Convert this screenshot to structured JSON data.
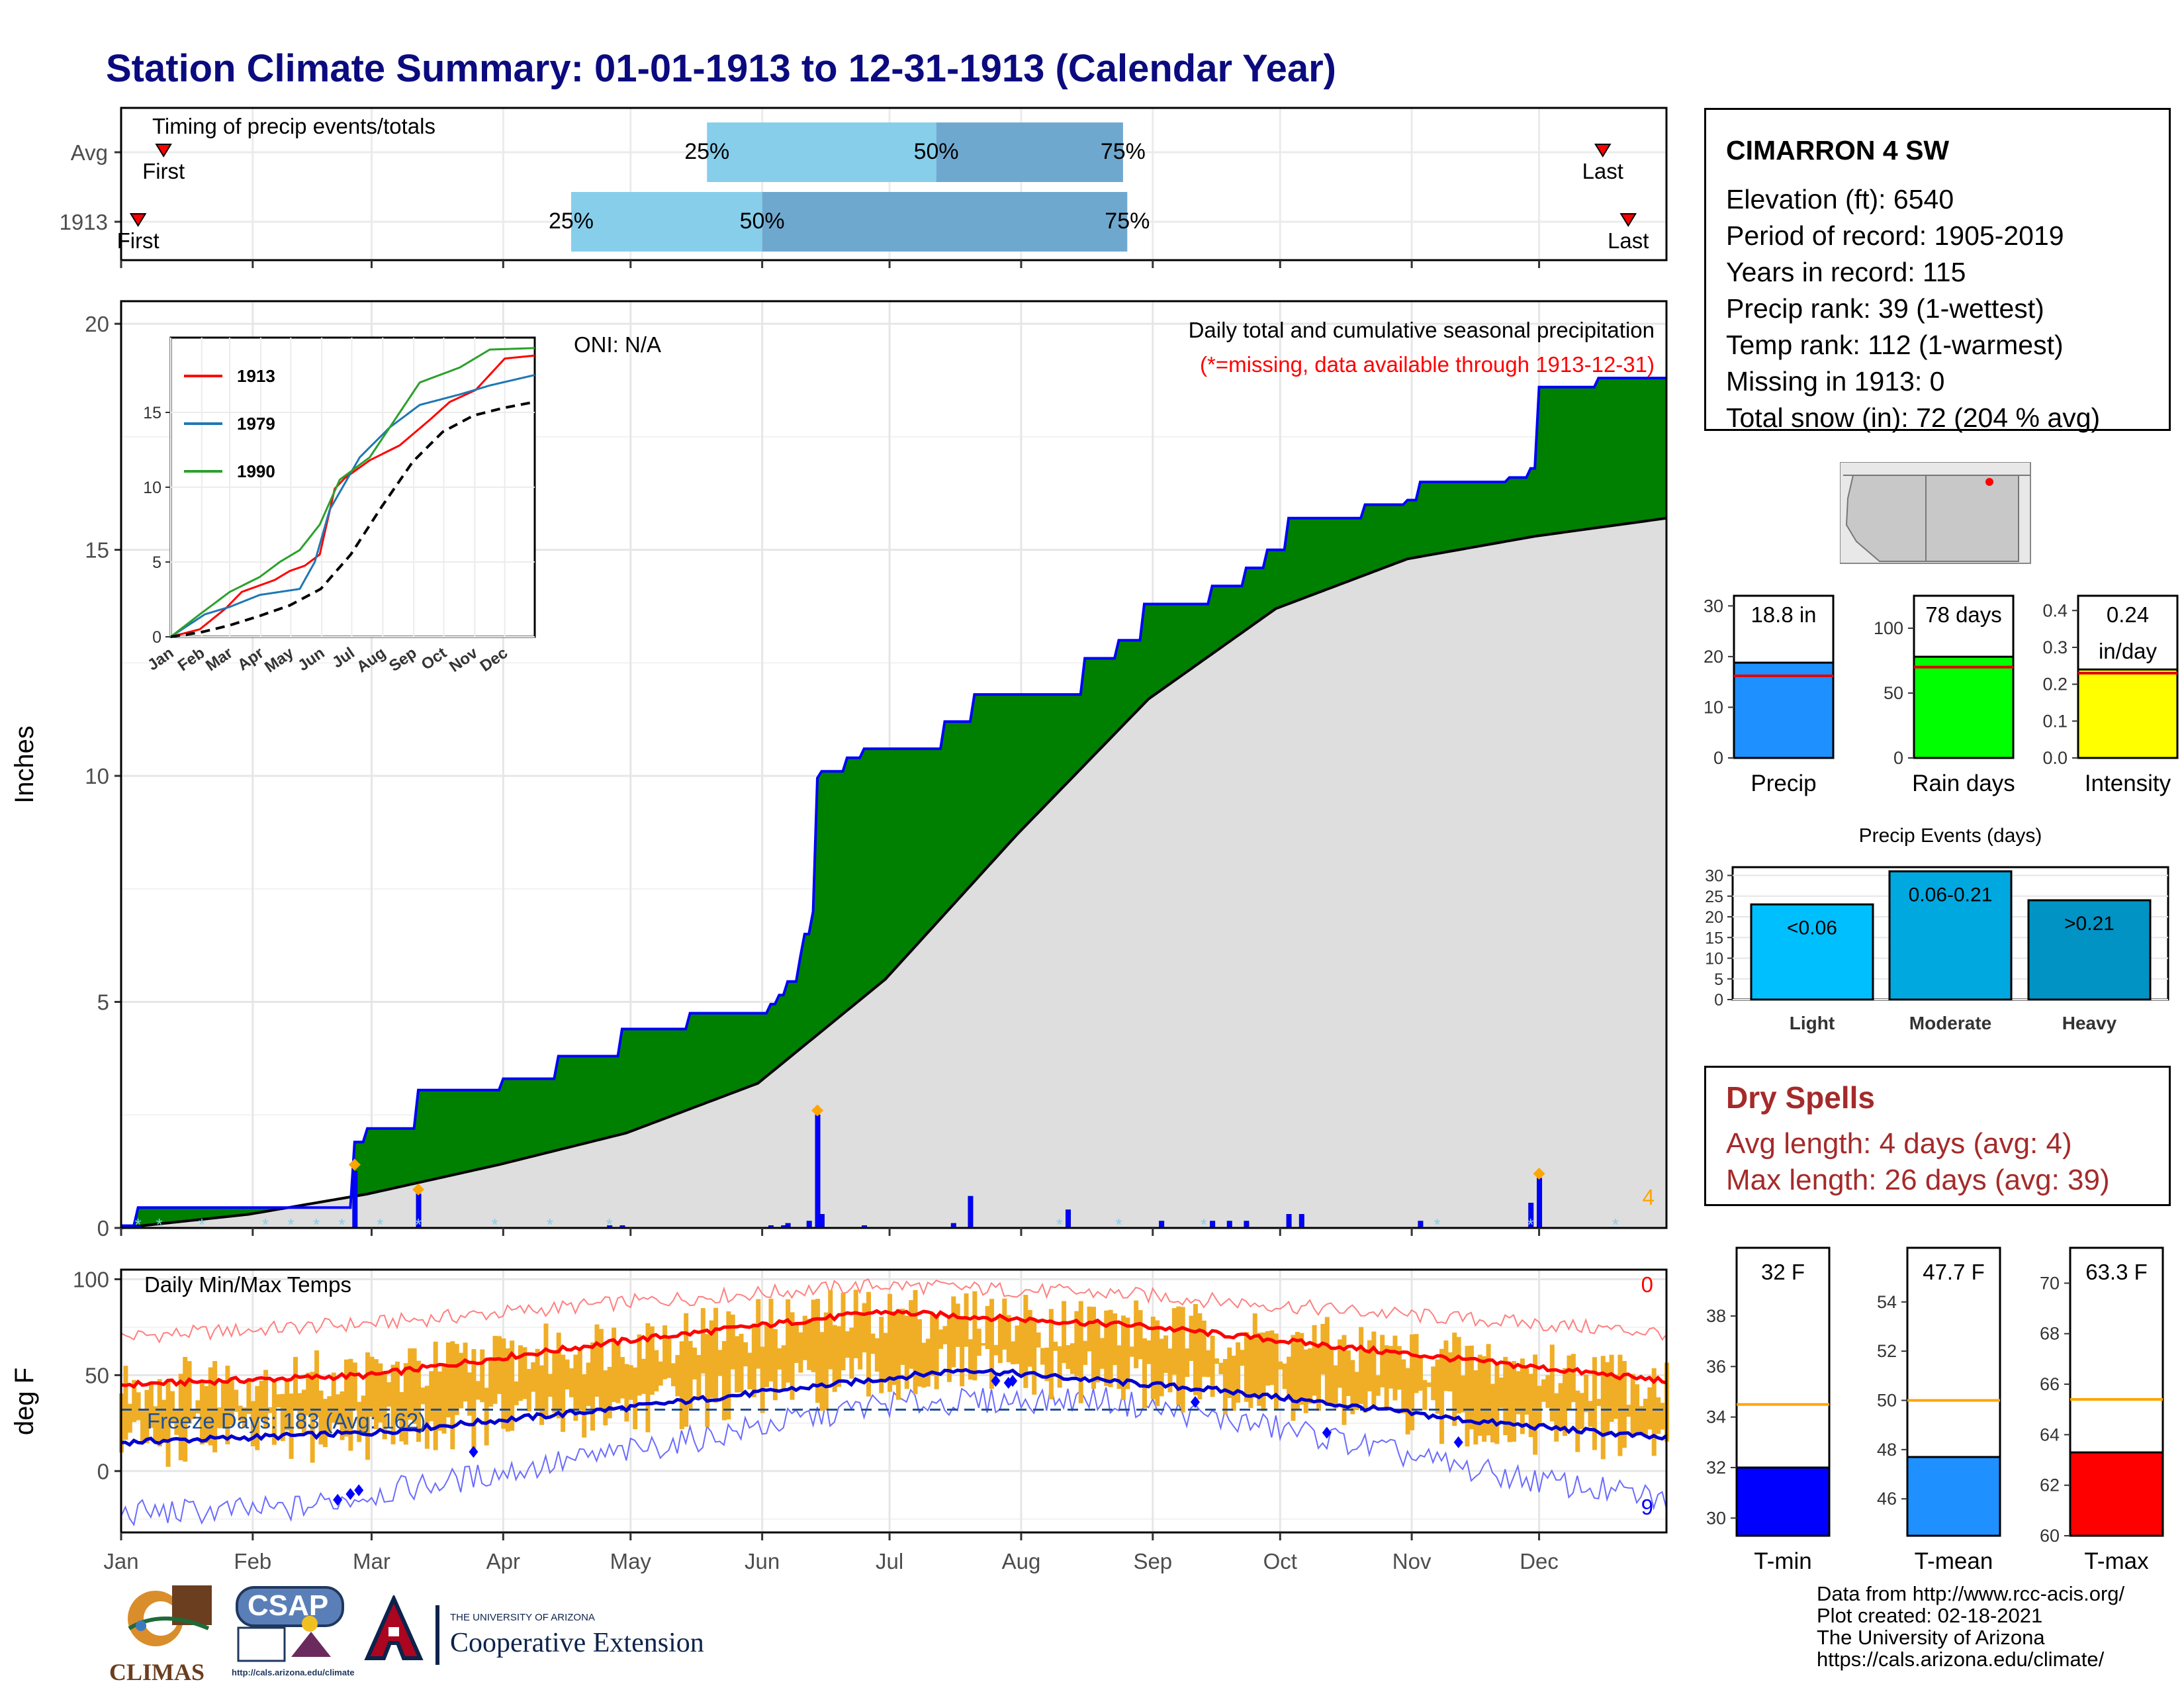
{
  "title": "Station Climate Summary: 01-01-1913 to 12-31-1913 (Calendar Year)",
  "station": {
    "name": "CIMARRON 4 SW",
    "lines": [
      "Elevation (ft): 6540",
      "Period of record: 1905-2019",
      "Years in record: 115",
      "Precip rank: 39 (1-wettest)",
      "Temp rank: 112 (1-warmest)",
      "Missing in 1913: 0",
      "Total snow (in): 72 (204 % avg)"
    ]
  },
  "dry_spells": {
    "title": "Dry Spells",
    "avg_line": "Avg length: 4 days (avg: 4)",
    "max_line": "Max length: 26 days (avg: 39)"
  },
  "credits": [
    "Data from http://www.rcc-acis.org/",
    "Plot created: 02-18-2021",
    "The University of Arizona",
    "https://cals.arizona.edu/climate/"
  ],
  "logos": {
    "climas": "CLIMAS",
    "csap": "CSAP",
    "csap_url": "http://cals.arizona.edu/climate",
    "ua_small": "THE UNIVERSITY OF ARIZONA",
    "ua_ext": "Cooperative Extension"
  },
  "months": [
    "Jan",
    "Feb",
    "Mar",
    "Apr",
    "May",
    "Jun",
    "Jul",
    "Aug",
    "Sep",
    "Oct",
    "Nov",
    "Dec"
  ],
  "colors": {
    "title": "#0b0b7f",
    "green": "#008000",
    "blue_line": "#0000ff",
    "avg_fill": "#dedede",
    "bar_light": "#87ceeb",
    "bar_dark": "#6fa8cf",
    "orange": "#efae26",
    "red": "#ff0000",
    "dry": "#a52a2a"
  },
  "chart_data": [
    {
      "id": "timing",
      "type": "bar",
      "title": "Timing of precip events/totals",
      "rows": [
        {
          "label": "Avg",
          "first": "Jan 11",
          "p25": "May 19",
          "p50": "Jul 12",
          "p75": "Aug 25",
          "last": "Dec 16"
        },
        {
          "label": "1913",
          "first": "Jan 5",
          "p25": "Apr 17",
          "p50": "Jun 1",
          "p75": "Aug 26",
          "last": "Dec 22"
        }
      ],
      "texts": {
        "p25": "25%",
        "p50": "50%",
        "p75": "75%",
        "first": "First",
        "last": "Last"
      }
    },
    {
      "id": "cumulative",
      "type": "area",
      "title": "Daily total and cumulative seasonal precipitation",
      "subtitle": "(*=missing, data available through 1913-12-31)",
      "oni": "ONI: N/A",
      "ylabel": "Inches",
      "ylim": [
        0,
        20.5
      ],
      "yticks": [
        0,
        5,
        10,
        15,
        20
      ],
      "corner_count": "4",
      "cum_1913_steps": [
        [
          1,
          0.05
        ],
        [
          5,
          0.45
        ],
        [
          55,
          0.45
        ],
        [
          56,
          1.9
        ],
        [
          59,
          2.2
        ],
        [
          66,
          2.2
        ],
        [
          71,
          3.05
        ],
        [
          90,
          3.05
        ],
        [
          91,
          3.3
        ],
        [
          103,
          3.3
        ],
        [
          104,
          3.8
        ],
        [
          118,
          3.8
        ],
        [
          119,
          4.4
        ],
        [
          134,
          4.4
        ],
        [
          135,
          4.75
        ],
        [
          153,
          4.75
        ],
        [
          154,
          4.95
        ],
        [
          156,
          5.15
        ],
        [
          158,
          5.45
        ],
        [
          161,
          6.0
        ],
        [
          162,
          6.5
        ],
        [
          164,
          7.0
        ],
        [
          165,
          9.95
        ],
        [
          166,
          10.1
        ],
        [
          172,
          10.4
        ],
        [
          176,
          10.6
        ],
        [
          193,
          10.6
        ],
        [
          195,
          11.2
        ],
        [
          201,
          11.2
        ],
        [
          202,
          11.8
        ],
        [
          211,
          11.8
        ],
        [
          213,
          11.8
        ],
        [
          228,
          12.6
        ],
        [
          236,
          13.0
        ],
        [
          242,
          13.8
        ],
        [
          258,
          14.2
        ],
        [
          266,
          14.6
        ],
        [
          271,
          15.0
        ],
        [
          276,
          15.7
        ],
        [
          286,
          15.7
        ],
        [
          294,
          16.0
        ],
        [
          304,
          16.1
        ],
        [
          307,
          16.5
        ],
        [
          310,
          16.5
        ],
        [
          328,
          16.6
        ],
        [
          333,
          16.8
        ],
        [
          335,
          18.6
        ],
        [
          349,
          18.8
        ],
        [
          365,
          18.8
        ]
      ],
      "avg_cum": [
        [
          1,
          0.0
        ],
        [
          31,
          0.3
        ],
        [
          59,
          0.75
        ],
        [
          90,
          1.4
        ],
        [
          120,
          2.1
        ],
        [
          151,
          3.2
        ],
        [
          181,
          5.5
        ],
        [
          212,
          8.7
        ],
        [
          243,
          11.7
        ],
        [
          273,
          13.7
        ],
        [
          304,
          14.8
        ],
        [
          334,
          15.3
        ],
        [
          365,
          15.7
        ]
      ],
      "daily_bars": [
        [
          3,
          0.05
        ],
        [
          5,
          0.05
        ],
        [
          56,
          1.25
        ],
        [
          71,
          0.75
        ],
        [
          116,
          0.05
        ],
        [
          119,
          0.05
        ],
        [
          154,
          0.05
        ],
        [
          157,
          0.05
        ],
        [
          158,
          0.1
        ],
        [
          163,
          0.15
        ],
        [
          165,
          2.5
        ],
        [
          166,
          0.3
        ],
        [
          176,
          0.05
        ],
        [
          197,
          0.1
        ],
        [
          201,
          0.7
        ],
        [
          224,
          0.4
        ],
        [
          246,
          0.15
        ],
        [
          258,
          0.15
        ],
        [
          262,
          0.15
        ],
        [
          266,
          0.15
        ],
        [
          276,
          0.3
        ],
        [
          279,
          0.3
        ],
        [
          307,
          0.15
        ],
        [
          333,
          0.55
        ],
        [
          335,
          1.1
        ]
      ],
      "markers": [
        [
          56,
          1.4
        ],
        [
          71,
          0.85
        ],
        [
          165,
          2.6
        ],
        [
          335,
          1.2
        ]
      ]
    },
    {
      "id": "inset_cumulative",
      "type": "line",
      "xlabels": [
        "Jan",
        "Feb",
        "Mar",
        "Apr",
        "May",
        "Jun",
        "Jul",
        "Aug",
        "Sep",
        "Oct",
        "Nov",
        "Dec"
      ],
      "ylim": [
        0,
        20
      ],
      "yticks": [
        0,
        5,
        10,
        15
      ],
      "series": [
        {
          "name": "1913",
          "color": "#ff0000",
          "points": [
            [
              1,
              0
            ],
            [
              30,
              0.5
            ],
            [
              56,
              1.9
            ],
            [
              72,
              3.0
            ],
            [
              105,
              3.8
            ],
            [
              120,
              4.4
            ],
            [
              135,
              4.75
            ],
            [
              150,
              5.5
            ],
            [
              165,
              9.9
            ],
            [
              175,
              10.6
            ],
            [
              200,
              11.8
            ],
            [
              230,
              12.8
            ],
            [
              260,
              14.5
            ],
            [
              280,
              15.7
            ],
            [
              306,
              16.5
            ],
            [
              335,
              18.6
            ],
            [
              365,
              18.8
            ]
          ]
        },
        {
          "name": "1979",
          "color": "#1f77b4",
          "points": [
            [
              1,
              0
            ],
            [
              35,
              1.5
            ],
            [
              60,
              2.0
            ],
            [
              90,
              2.8
            ],
            [
              130,
              3.2
            ],
            [
              145,
              5.0
            ],
            [
              160,
              8.5
            ],
            [
              190,
              12.0
            ],
            [
              220,
              14.0
            ],
            [
              250,
              15.5
            ],
            [
              290,
              16.2
            ],
            [
              320,
              16.8
            ],
            [
              365,
              17.5
            ]
          ]
        },
        {
          "name": "1990",
          "color": "#2ca02c",
          "points": [
            [
              1,
              0
            ],
            [
              30,
              1.5
            ],
            [
              60,
              3.0
            ],
            [
              90,
              4.0
            ],
            [
              110,
              5.0
            ],
            [
              130,
              5.8
            ],
            [
              150,
              7.5
            ],
            [
              170,
              10.5
            ],
            [
              200,
              12.0
            ],
            [
              225,
              14.5
            ],
            [
              250,
              17.0
            ],
            [
              290,
              18.0
            ],
            [
              320,
              19.2
            ],
            [
              365,
              19.3
            ]
          ]
        },
        {
          "name": "",
          "color": "#000000",
          "dashed": true,
          "points": [
            [
              1,
              0
            ],
            [
              31,
              0.3
            ],
            [
              59,
              0.75
            ],
            [
              90,
              1.4
            ],
            [
              120,
              2.1
            ],
            [
              151,
              3.2
            ],
            [
              181,
              5.5
            ],
            [
              212,
              8.7
            ],
            [
              243,
              11.7
            ],
            [
              273,
              13.7
            ],
            [
              304,
              14.8
            ],
            [
              334,
              15.3
            ],
            [
              365,
              15.7
            ]
          ]
        }
      ]
    },
    {
      "id": "temps",
      "type": "bar",
      "title": "Daily Min/Max Temps",
      "ylabel": "deg F",
      "ylim": [
        -32,
        105
      ],
      "yticks": [
        0,
        50,
        100
      ],
      "freeze_label": "Freeze Days: 183 (Avg: 162)",
      "freeze_line": 32,
      "count_top": "0",
      "count_bottom": "9",
      "avg_max": [
        [
          1,
          45
        ],
        [
          60,
          50
        ],
        [
          120,
          68
        ],
        [
          180,
          83
        ],
        [
          240,
          76
        ],
        [
          300,
          62
        ],
        [
          365,
          47
        ]
      ],
      "avg_min": [
        [
          1,
          15
        ],
        [
          60,
          20
        ],
        [
          120,
          33
        ],
        [
          200,
          53
        ],
        [
          260,
          42
        ],
        [
          320,
          26
        ],
        [
          365,
          17
        ]
      ],
      "record_max": [
        [
          1,
          70
        ],
        [
          60,
          77
        ],
        [
          120,
          88
        ],
        [
          180,
          97
        ],
        [
          240,
          92
        ],
        [
          300,
          82
        ],
        [
          365,
          72
        ]
      ],
      "record_min": [
        [
          1,
          -22
        ],
        [
          40,
          -20
        ],
        [
          60,
          -12
        ],
        [
          120,
          10
        ],
        [
          180,
          35
        ],
        [
          230,
          38
        ],
        [
          280,
          20
        ],
        [
          320,
          0
        ],
        [
          365,
          -15
        ]
      ]
    },
    {
      "id": "annual_bars",
      "type": "bar",
      "panels": [
        {
          "name": "Precip",
          "label": "18.8 in",
          "value": 18.8,
          "avg": 16.2,
          "ylim": [
            0,
            32
          ],
          "yticks": [
            0,
            10,
            20,
            30
          ],
          "color": "#1e90ff"
        },
        {
          "name": "Rain days",
          "label": "78 days",
          "value": 78,
          "avg": 70,
          "ylim": [
            0,
            125
          ],
          "yticks": [
            0,
            50,
            100
          ],
          "color": "#00ff00"
        },
        {
          "name": "Intensity",
          "label": "0.24",
          "label2": "in/day",
          "value": 0.24,
          "avg": 0.23,
          "ylim": [
            0,
            0.44
          ],
          "yticks": [
            0.0,
            0.1,
            0.2,
            0.3,
            0.4
          ],
          "color": "#ffff00"
        }
      ]
    },
    {
      "id": "precip_events",
      "type": "bar",
      "title": "Precip Events (days)",
      "categories": [
        "Light",
        "Moderate",
        "Heavy"
      ],
      "labels": [
        "<0.06",
        "0.06-0.21",
        ">0.21"
      ],
      "values": [
        23,
        31,
        24
      ],
      "ylim": [
        0,
        32
      ],
      "yticks": [
        0,
        5,
        10,
        15,
        20,
        25,
        30
      ],
      "colors": [
        "#00bfff",
        "#00a8e0",
        "#0093c4"
      ]
    },
    {
      "id": "annual_temps",
      "type": "bar",
      "panels": [
        {
          "name": "T-min",
          "label": "32 F",
          "value": 32,
          "avg": 34.5,
          "ylim": [
            29.3,
            40.7
          ],
          "yticks": [
            30,
            32,
            34,
            36,
            38
          ],
          "color": "#0000ff"
        },
        {
          "name": "T-mean",
          "label": "47.7 F",
          "value": 47.7,
          "avg": 50,
          "ylim": [
            44.5,
            56.2
          ],
          "yticks": [
            46,
            48,
            50,
            52,
            54
          ],
          "color": "#1e90ff"
        },
        {
          "name": "T-max",
          "label": "63.3 F",
          "value": 63.3,
          "avg": 65.4,
          "ylim": [
            60,
            71.4
          ],
          "yticks": [
            60,
            62,
            64,
            66,
            68,
            70
          ],
          "color": "#ff0000"
        }
      ]
    }
  ]
}
